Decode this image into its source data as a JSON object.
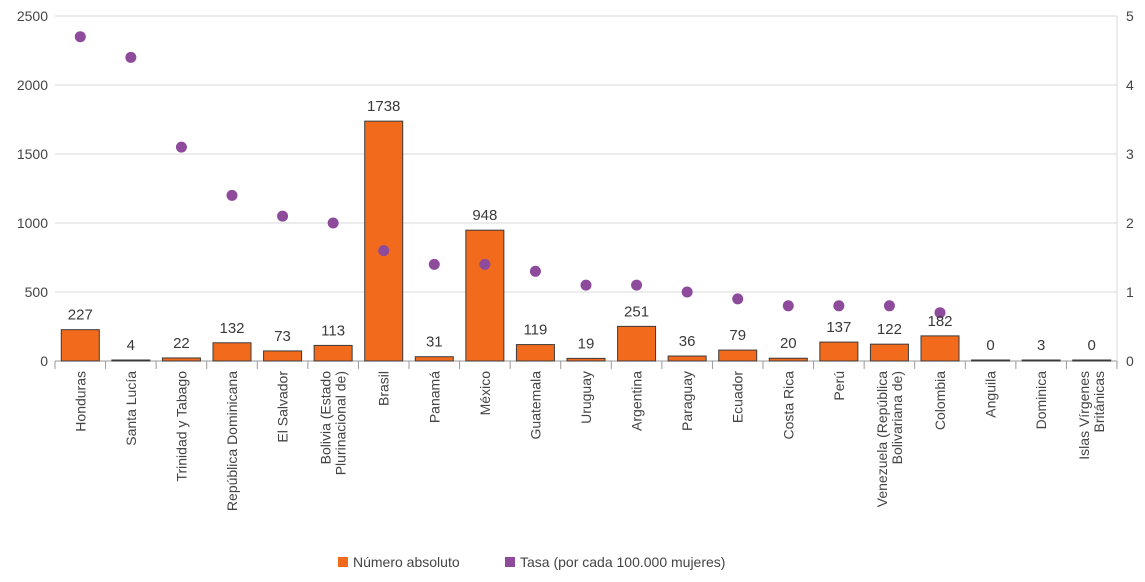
{
  "chart_data": {
    "type": "bar",
    "categories": [
      [
        "Honduras"
      ],
      [
        "Santa Lucía"
      ],
      [
        "Trinidad y Tabago"
      ],
      [
        "República Dominicana"
      ],
      [
        "El Salvador"
      ],
      [
        "Bolivia (Estado",
        "Plurinacional de)"
      ],
      [
        "Brasil"
      ],
      [
        "Panamá"
      ],
      [
        "México"
      ],
      [
        "Guatemala"
      ],
      [
        "Uruguay"
      ],
      [
        "Argentina"
      ],
      [
        "Paraguay"
      ],
      [
        "Ecuador"
      ],
      [
        "Costa Rica"
      ],
      [
        "Perú"
      ],
      [
        "Venezuela (República",
        "Bolivariana de)"
      ],
      [
        "Colombia"
      ],
      [
        "Anguila"
      ],
      [
        "Dominica"
      ],
      [
        "Islas Vírgenes",
        "Británicas"
      ]
    ],
    "series": [
      {
        "name": "Número absoluto",
        "kind": "bar",
        "axis": "left",
        "color": "#f26b1d",
        "values": [
          227,
          4,
          22,
          132,
          73,
          113,
          1738,
          31,
          948,
          119,
          19,
          251,
          36,
          79,
          20,
          137,
          122,
          182,
          0,
          3,
          0
        ]
      },
      {
        "name": "Tasa (por cada 100.000 mujeres)",
        "kind": "scatter",
        "axis": "right",
        "color": "#8e4a9b",
        "values": [
          4.7,
          4.4,
          3.1,
          2.4,
          2.1,
          2.0,
          1.6,
          1.4,
          1.4,
          1.3,
          1.1,
          1.1,
          1.0,
          0.9,
          0.8,
          0.8,
          0.8,
          0.7,
          null,
          null,
          null
        ]
      }
    ],
    "y_left": {
      "range": [
        0,
        2500
      ],
      "ticks": [
        "0",
        "500",
        "1000",
        "1500",
        "2000",
        "2500"
      ]
    },
    "y_right": {
      "range": [
        0,
        5
      ],
      "ticks": [
        "0",
        "1",
        "2",
        "3",
        "4",
        "5"
      ]
    },
    "grid": true,
    "legend_position": "bottom-center"
  }
}
